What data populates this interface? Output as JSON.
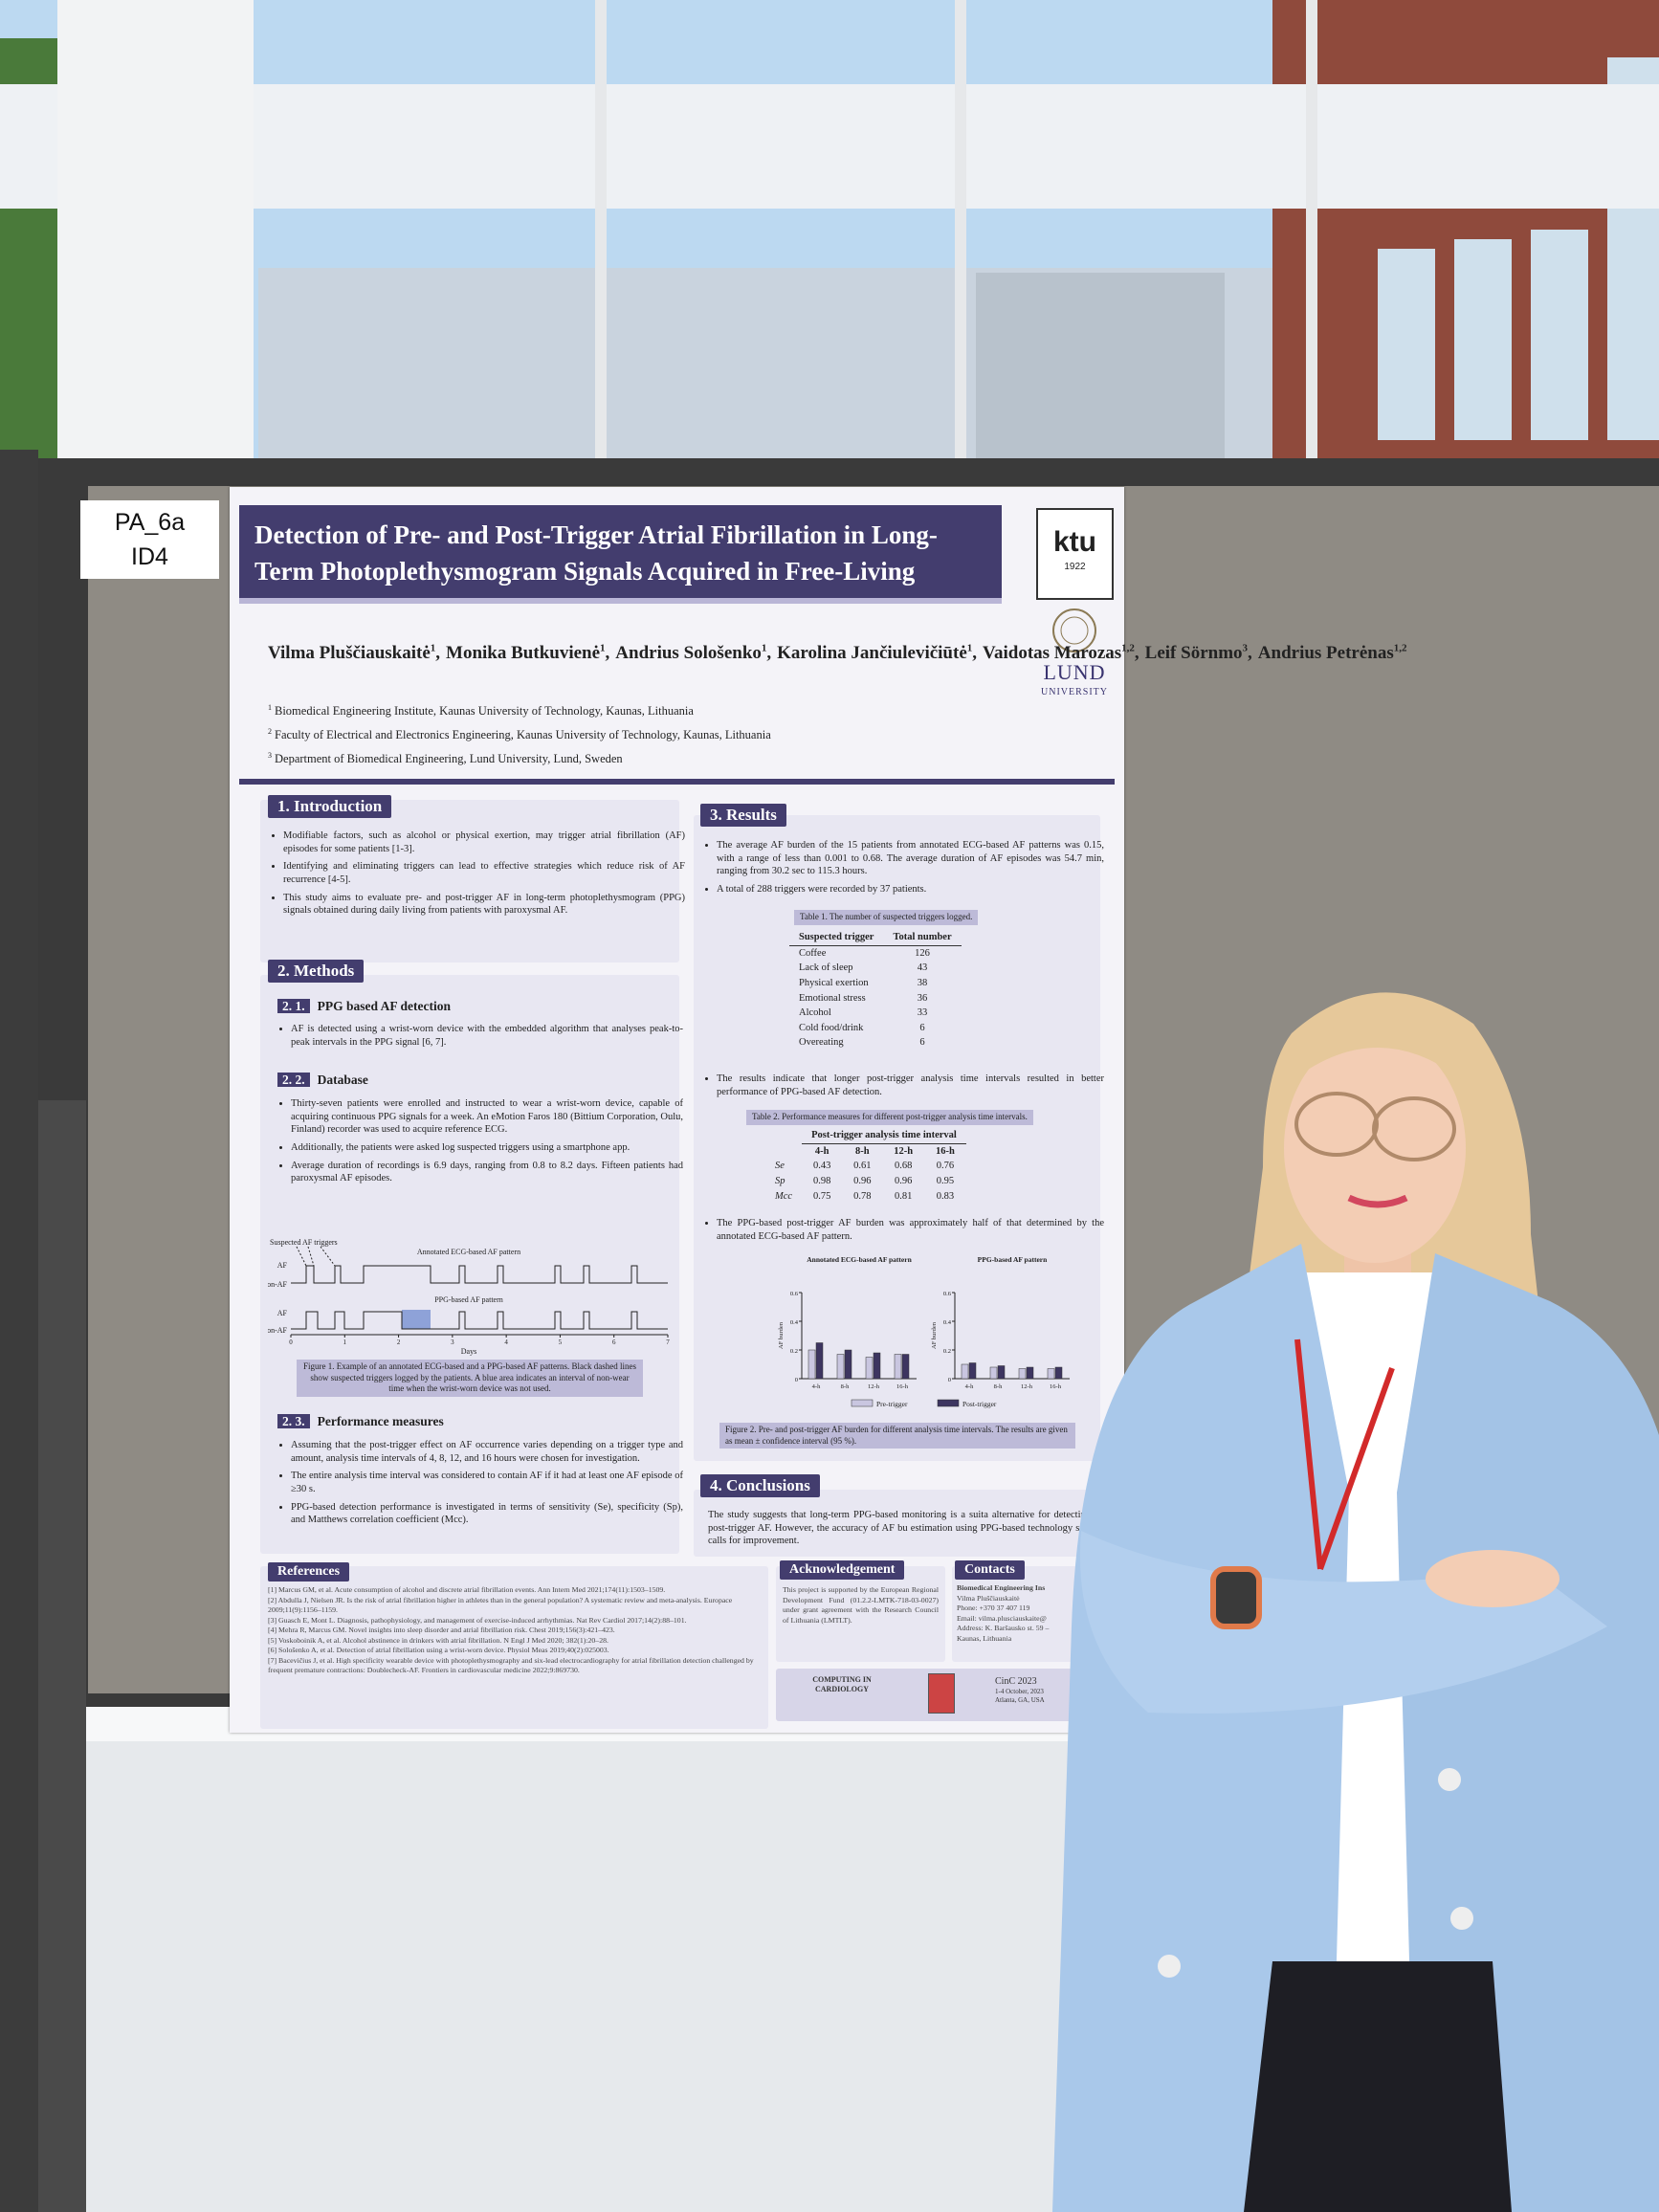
{
  "label": {
    "line1": "PA_6a",
    "line2": "ID4"
  },
  "poster": {
    "title": "Detection of Pre- and Post-Trigger Atrial Fibrillation in Long-Term Photoplethysmogram Signals Acquired in Free-Living",
    "logos": {
      "ktu": "ktu",
      "ktu_year": "1922",
      "lund": "LUND",
      "lund_sub": "UNIVERSITY"
    },
    "authors": [
      {
        "name": "Vilma Pluščiauskaitė",
        "sup": "1",
        "after": ","
      },
      {
        "name": "Monika Butkuvienė",
        "sup": "1",
        "after": ","
      },
      {
        "name": "Andrius Sološenko",
        "sup": "1",
        "after": ","
      },
      {
        "name": "Karolina Jančiulevičiūtė",
        "sup": "1",
        "after": ","
      },
      {
        "name": "Vaidotas Marozas",
        "sup": "1,2",
        "after": ","
      },
      {
        "name": "Leif Sörnmo",
        "sup": "3",
        "after": ","
      },
      {
        "name": "Andrius Petrėnas",
        "sup": "1,2"
      }
    ],
    "affiliations": [
      {
        "num": "1",
        "text": "Biomedical Engineering Institute, Kaunas University of Technology, Kaunas, Lithuania"
      },
      {
        "num": "2",
        "text": "Faculty of Electrical and Electronics Engineering, Kaunas University of Technology, Kaunas, Lithuania"
      },
      {
        "num": "3",
        "text": "Department of Biomedical Engineering, Lund University, Lund, Sweden"
      }
    ],
    "introduction": {
      "heading": "1. Introduction",
      "bullets": [
        "Modifiable factors, such as alcohol or physical exertion, may trigger atrial fibrillation (AF) episodes for some patients [1-3].",
        "Identifying and eliminating triggers can lead to effective strategies which reduce risk of AF recurrence [4-5].",
        "This study aims to evaluate pre- and post-trigger AF in long-term photoplethysmogram (PPG) signals obtained during daily living from patients with paroxysmal AF."
      ]
    },
    "methods": {
      "heading": "2. Methods",
      "sub1": {
        "num": "2. 1.",
        "title": "PPG based AF detection",
        "bullets": [
          "AF is detected using a wrist-worn device with the embedded algorithm that analyses peak-to-peak intervals in the PPG signal [6, 7]."
        ]
      },
      "sub2": {
        "num": "2. 2.",
        "title": "Database",
        "bullets": [
          "Thirty-seven patients were enrolled and instructed to wear a wrist-worn device, capable of acquiring continuous PPG signals for a week. An eMotion Faros 180 (Bittium Corporation, Oulu, Finland) recorder was used to acquire reference ECG.",
          "Additionally, the patients were asked log suspected triggers using a smartphone app.",
          "Average duration of recordings is 6.9 days, ranging from 0.8 to 8.2 days. Fifteen patients had paroxysmal AF episodes."
        ]
      },
      "sub3": {
        "num": "2. 3.",
        "title": "Performance measures",
        "bullets": [
          "Assuming that the post-trigger effect on AF occurrence varies depending on a trigger type and amount, analysis time intervals of 4, 8, 12, and 16 hours were chosen for investigation.",
          "The entire analysis time interval was considered to contain AF if it had at least one AF episode of ≥30 s.",
          "PPG-based detection performance is investigated in terms of sensitivity (Se), specificity (Sp), and Matthews correlation coefficient (Mcc)."
        ]
      }
    },
    "figure1": {
      "triggers_label": "Suspected AF triggers",
      "ecg_label": "Annotated ECG-based AF pattern",
      "ppg_label": "PPG-based AF pattern",
      "af": "AF",
      "non_af": "non-AF",
      "xticks": [
        0,
        1,
        2,
        3,
        4,
        5,
        6,
        7
      ],
      "xlabel": "Days",
      "caption": "Figure 1. Example of an annotated ECG-based and a PPG-based AF patterns. Black dashed lines show suspected triggers logged by the patients. A blue area indicates an interval of non-wear time when the wrist-worn device was not used."
    },
    "results": {
      "heading": "3. Results",
      "bullets": [
        "The average AF burden of the 15 patients from annotated ECG-based AF patterns was 0.15, with a range of less than 0.001 to 0.68. The average duration of AF episodes was 54.7 min, ranging from 30.2 sec to 115.3 hours.",
        "A total of 288 triggers were recorded by 37 patients.",
        "The results indicate that longer post-trigger analysis time intervals resulted in better performance of PPG-based AF detection.",
        "The PPG-based post-trigger AF burden was approximately half of that determined by the annotated ECG-based AF pattern."
      ]
    },
    "table1": {
      "caption": "Table 1. The number of suspected triggers logged.",
      "columns": [
        "Suspected trigger",
        "Total number"
      ],
      "rows": [
        [
          "Coffee",
          126
        ],
        [
          "Lack of sleep",
          43
        ],
        [
          "Physical exertion",
          38
        ],
        [
          "Emotional stress",
          36
        ],
        [
          "Alcohol",
          33
        ],
        [
          "Cold food/drink",
          6
        ],
        [
          "Overeating",
          6
        ]
      ]
    },
    "table2": {
      "caption": "Table 2. Performance measures for different post-trigger analysis time intervals.",
      "group_header": "Post-trigger analysis time interval",
      "columns": [
        "4-h",
        "8-h",
        "12-h",
        "16-h"
      ],
      "rows": [
        [
          "Se",
          0.43,
          0.61,
          0.68,
          0.76
        ],
        [
          "Sp",
          0.98,
          0.96,
          0.96,
          0.95
        ],
        [
          "Mcc",
          0.75,
          0.78,
          0.81,
          0.83
        ]
      ]
    },
    "figure2": {
      "ylabel": "AF burden",
      "ylim": [
        0,
        0.6
      ],
      "yticks": [
        0,
        0.2,
        0.4,
        0.6
      ],
      "categories": [
        "4-h",
        "8-h",
        "12-h",
        "16-h"
      ],
      "legend": [
        {
          "name": "Pre-trigger",
          "color": "#c9c6e0"
        },
        {
          "name": "Post-trigger",
          "color": "#3d3560"
        }
      ],
      "panels": [
        {
          "title": "Annotated ECG-based AF pattern",
          "pre": [
            0.2,
            0.17,
            0.15,
            0.17
          ],
          "post": [
            0.25,
            0.2,
            0.18,
            0.17
          ]
        },
        {
          "title": "PPG-based AF pattern",
          "pre": [
            0.1,
            0.08,
            0.07,
            0.07
          ],
          "post": [
            0.11,
            0.09,
            0.08,
            0.08
          ]
        }
      ],
      "caption": "Figure 2. Pre- and post-trigger AF burden for different analysis time intervals. The results are given as mean ± confidence interval (95 %)."
    },
    "conclusions": {
      "heading": "4. Conclusions",
      "text": "The study suggests that long-term PPG-based monitoring is a suita alternative for detecting post-trigger AF. However, the accuracy of AF bu estimation using PPG-based technology still calls for improvement."
    },
    "references": {
      "heading": "References",
      "items": [
        "[1] Marcus GM, et al. Acute consumption of alcohol and discrete atrial fibrillation events. Ann Intern Med 2021;174(11):1503–1509.",
        "[2] Abdulla J, Nielsen JR. Is the risk of atrial fibrillation higher in athletes than in the general population? A systematic review and meta-analysis. Europace 2009;11(9):1156–1159.",
        "[3] Guasch E, Mont L. Diagnosis, pathophysiology, and management of exercise-induced arrhythmias. Nat Rev Cardiol 2017;14(2):88–101.",
        "[4] Mehra R, Marcus GM. Novel insights into sleep disorder and atrial fibrillation risk. Chest 2019;156(3):421–423.",
        "[5] Voskoboinik A, et al. Alcohol abstinence in drinkers with atrial fibrillation. N Engl J Med 2020; 382(1):20–28.",
        "[6] Sološenko A, et al. Detection of atrial fibrillation using a wrist-worn device. Physiol Meas 2019;40(2):025003.",
        "[7] Bacevičius J, et al. High specificity wearable device with photoplethysmography and six-lead electrocardiography for atrial fibrillation detection challenged by frequent premature contractions: Doublecheck-AF. Frontiers in cardiovascular medicine 2022;9:869730."
      ]
    },
    "acknowledgement": {
      "heading": "Acknowledgement",
      "text": "This project is supported by the European Regional Development Fund (01.2.2-LMTK-718-03-0027) under grant agreement with the Research Council of Lithuania (LMTLT)."
    },
    "contacts": {
      "heading": "Contacts",
      "lines": [
        "Biomedical Engineering Ins",
        "Vilma Pluščiauskaitė",
        "Phone: +370 37 407 119",
        "Email: vilma.plusciauskaite@",
        "Address: K. Baršausko st. 59 –",
        "Kaunas, Lithuania"
      ]
    },
    "footer": {
      "cinc_logo": "COMPUTING IN CARDIOLOGY",
      "conf": "CinC 2023",
      "dates": "1-4 October, 2023",
      "place": "Atlanta, GA, USA"
    }
  }
}
